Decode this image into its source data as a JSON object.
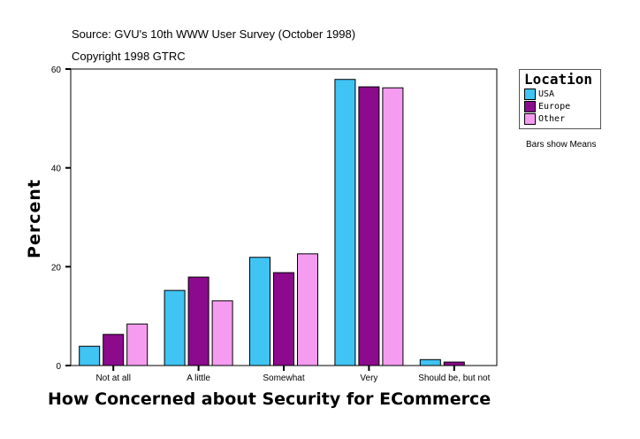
{
  "chart_data": {
    "type": "bar",
    "subtitle": "Source: GVU's 10th WWW User Survey (October 1998)",
    "copyright": "Copyright 1998 GTRC",
    "xlabel": "How Concerned about Security for ECommerce",
    "ylabel": "Percent",
    "ylim": [
      0,
      60
    ],
    "yticks": [
      0,
      20,
      40,
      60
    ],
    "categories": [
      "Not at all",
      "A little",
      "Somewhat",
      "Very",
      "Should be, but not"
    ],
    "legend": {
      "title": "Location",
      "placement": "right"
    },
    "note": "Bars show Means",
    "series": [
      {
        "name": "USA",
        "color": "#40c4f4",
        "values": [
          3.9,
          15.2,
          21.9,
          57.9,
          1.2
        ]
      },
      {
        "name": "Europe",
        "color": "#8c0a8c",
        "values": [
          6.3,
          17.9,
          18.8,
          56.4,
          0.7
        ]
      },
      {
        "name": "Other",
        "color": "#f59cf0",
        "values": [
          8.4,
          13.1,
          22.6,
          56.2,
          0
        ]
      }
    ]
  }
}
